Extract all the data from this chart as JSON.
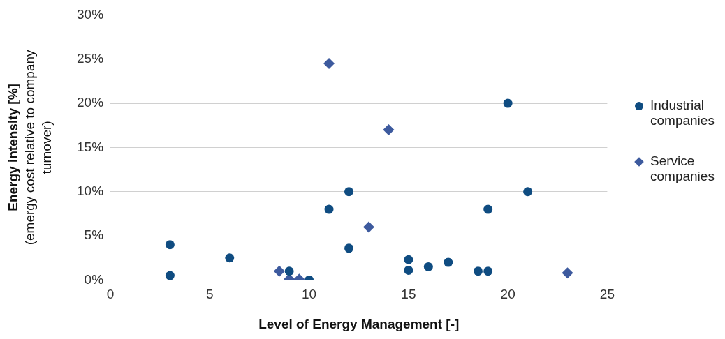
{
  "chart_data": {
    "type": "scatter",
    "xlabel": "Level of Energy Management [-]",
    "ylabel": "Energy intensity [%]\n(emergy cost relative to company turnover)",
    "xlim": [
      0,
      25
    ],
    "xticks": [
      0,
      5,
      10,
      15,
      20,
      25
    ],
    "ylim": [
      0,
      30
    ],
    "yticks": [
      {
        "value": 0,
        "label": "0%"
      },
      {
        "value": 5,
        "label": "5%"
      },
      {
        "value": 10,
        "label": "10%"
      },
      {
        "value": 15,
        "label": "15%"
      },
      {
        "value": 20,
        "label": "20%"
      },
      {
        "value": 25,
        "label": "25%"
      },
      {
        "value": 30,
        "label": "30%"
      }
    ],
    "grid": "y",
    "legend": "right",
    "series": [
      {
        "name": "Industrial companies",
        "color": "#0f4c81",
        "marker": "circle",
        "x": [
          3,
          3,
          6,
          9,
          10,
          11,
          12,
          12,
          15,
          15,
          16,
          17,
          18.5,
          19,
          19,
          20,
          21
        ],
        "values": [
          4,
          0.5,
          2.5,
          1,
          0,
          8,
          10,
          3.6,
          2.3,
          1.1,
          1.5,
          2,
          1,
          1,
          8,
          20,
          10
        ]
      },
      {
        "name": "Service companies",
        "color": "#3d5a9e",
        "marker": "diamond",
        "x": [
          8.5,
          9,
          9.5,
          11,
          13,
          14,
          23
        ],
        "values": [
          1,
          0.1,
          0.1,
          24.5,
          6,
          17,
          0.8
        ]
      }
    ]
  }
}
